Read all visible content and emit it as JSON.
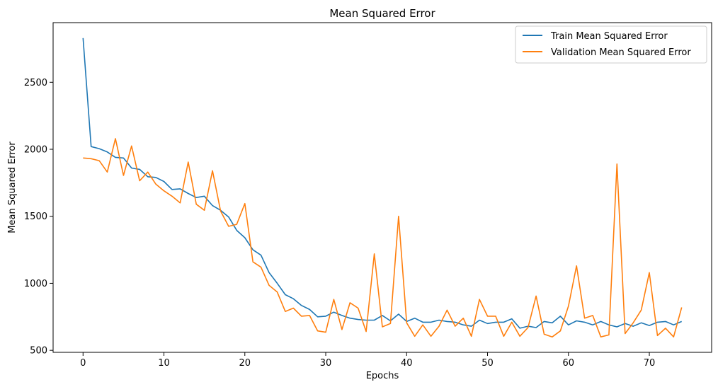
{
  "chart_data": {
    "type": "line",
    "title": "Mean Squared Error",
    "xlabel": "Epochs",
    "ylabel": "Mean Squared Error",
    "xlim": [
      -3.7,
      77.7
    ],
    "ylim": [
      485,
      2945
    ],
    "xticks": [
      0,
      10,
      20,
      30,
      40,
      50,
      60,
      70
    ],
    "yticks": [
      500,
      1000,
      1500,
      2000,
      2500
    ],
    "grid": false,
    "legend": "top-right",
    "x": [
      0,
      1,
      2,
      3,
      4,
      5,
      6,
      7,
      8,
      9,
      10,
      11,
      12,
      13,
      14,
      15,
      16,
      17,
      18,
      19,
      20,
      21,
      22,
      23,
      24,
      25,
      26,
      27,
      28,
      29,
      30,
      31,
      32,
      33,
      34,
      35,
      36,
      37,
      38,
      39,
      40,
      41,
      42,
      43,
      44,
      45,
      46,
      47,
      48,
      49,
      50,
      51,
      52,
      53,
      54,
      55,
      56,
      57,
      58,
      59,
      60,
      61,
      62,
      63,
      64,
      65,
      66,
      67,
      68,
      69,
      70,
      71,
      72,
      73,
      74
    ],
    "series": [
      {
        "name": "Train Mean Squared Error",
        "color": "#1f77b4",
        "values": [
          2830,
          2020,
          2005,
          1980,
          1940,
          1935,
          1860,
          1850,
          1795,
          1790,
          1760,
          1700,
          1705,
          1670,
          1640,
          1650,
          1580,
          1545,
          1495,
          1395,
          1340,
          1250,
          1210,
          1080,
          1000,
          915,
          885,
          835,
          805,
          750,
          755,
          785,
          760,
          740,
          730,
          725,
          725,
          760,
          720,
          770,
          715,
          740,
          710,
          710,
          725,
          715,
          710,
          690,
          680,
          725,
          700,
          710,
          710,
          735,
          665,
          680,
          670,
          715,
          705,
          755,
          690,
          720,
          710,
          690,
          715,
          690,
          675,
          700,
          680,
          705,
          685,
          710,
          715,
          690,
          715
        ]
      },
      {
        "name": "Validation Mean Squared Error",
        "color": "#ff7f0e",
        "values": [
          1935,
          1930,
          1915,
          1830,
          2080,
          1805,
          2025,
          1765,
          1830,
          1740,
          1690,
          1650,
          1600,
          1905,
          1590,
          1545,
          1840,
          1540,
          1425,
          1440,
          1595,
          1160,
          1120,
          985,
          935,
          790,
          815,
          755,
          760,
          645,
          635,
          880,
          655,
          855,
          815,
          640,
          1220,
          675,
          700,
          1500,
          705,
          605,
          690,
          605,
          680,
          800,
          680,
          740,
          605,
          880,
          755,
          755,
          605,
          710,
          605,
          670,
          905,
          620,
          600,
          645,
          830,
          1130,
          740,
          760,
          600,
          615,
          1890,
          625,
          705,
          800,
          1080,
          610,
          665,
          600,
          820
        ]
      }
    ]
  }
}
